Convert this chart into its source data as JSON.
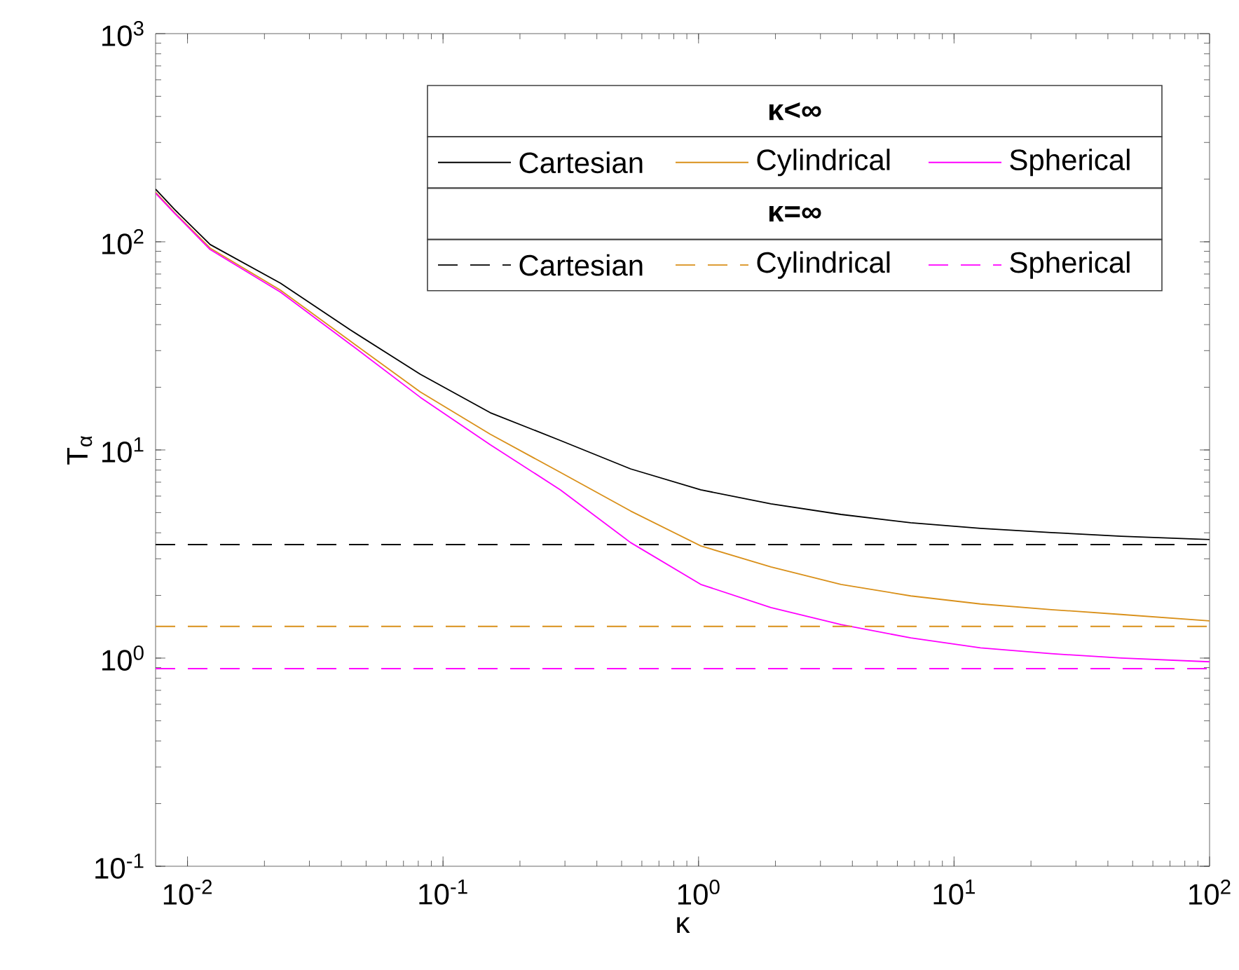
{
  "chart_data": {
    "type": "line",
    "xlabel": "κ",
    "ylabel": "T$_{α}$",
    "log": "xy",
    "xlim": [
      0.0075,
      100
    ],
    "ylim": [
      0.1,
      1000
    ],
    "xticks": [
      {
        "value": 0.01,
        "label": "10$^{-2}$"
      },
      {
        "value": 0.1,
        "label": "10$^{-1}$"
      },
      {
        "value": 1,
        "label": "10$^{0}$"
      },
      {
        "value": 10,
        "label": "10$^{1}$"
      },
      {
        "value": 100,
        "label": "10$^{2}$"
      }
    ],
    "yticks": [
      {
        "value": 0.1,
        "label": "10$^{-1}$"
      },
      {
        "value": 1,
        "label": "10$^{0}$"
      },
      {
        "value": 10,
        "label": "10$^{1}$"
      },
      {
        "value": 100,
        "label": "10$^{2}$"
      },
      {
        "value": 1000,
        "label": "10$^{3}$"
      }
    ],
    "grid": false,
    "legend": "top right",
    "annotations": [
      "κ<∞",
      "κ=∞"
    ],
    "series": [
      {
        "name": "Cartesian",
        "color": "#000000",
        "line_style": "solid",
        "x": [
          0.0075,
          0.0089,
          0.01226,
          0.0231,
          0.0434,
          0.0815,
          0.153,
          0.288,
          0.542,
          1.02,
          1.92,
          3.61,
          6.77,
          12.7,
          24.0,
          45.1,
          100
        ],
        "values": [
          179,
          143,
          97,
          63.3,
          37.7,
          23.1,
          15.1,
          11.1,
          8.11,
          6.43,
          5.51,
          4.9,
          4.47,
          4.2,
          4.01,
          3.85,
          3.71
        ]
      },
      {
        "name": "Cylindrical",
        "color": "#d9901a",
        "line_style": "solid",
        "x": [
          0.0075,
          0.0089,
          0.01226,
          0.0231,
          0.0434,
          0.0815,
          0.153,
          0.288,
          0.542,
          1.02,
          1.92,
          3.61,
          6.77,
          12.7,
          24.0,
          45.1,
          100
        ],
        "values": [
          173,
          138,
          93.3,
          58.6,
          33.3,
          19.0,
          11.9,
          7.8,
          5.09,
          3.46,
          2.74,
          2.26,
          1.99,
          1.82,
          1.71,
          1.62,
          1.51
        ]
      },
      {
        "name": "Spherical",
        "color": "#ff00ff",
        "line_style": "solid",
        "x": [
          0.0075,
          0.0089,
          0.01226,
          0.0231,
          0.0434,
          0.0815,
          0.153,
          0.288,
          0.542,
          1.02,
          1.92,
          3.61,
          6.77,
          12.7,
          24.0,
          45.1,
          100
        ],
        "values": [
          171,
          137,
          91.8,
          57.3,
          32.2,
          17.9,
          10.6,
          6.43,
          3.59,
          2.26,
          1.75,
          1.45,
          1.25,
          1.12,
          1.05,
          1.0,
          0.96
        ]
      },
      {
        "name": "Cartesian",
        "color": "#000000",
        "line_style": "dashed",
        "x": [
          0.0075,
          100
        ],
        "values": [
          3.51,
          3.51
        ]
      },
      {
        "name": "Cylindrical",
        "color": "#d9901a",
        "line_style": "dashed",
        "x": [
          0.0075,
          100
        ],
        "values": [
          1.42,
          1.42
        ]
      },
      {
        "name": "Spherical",
        "color": "#ff00ff",
        "line_style": "dashed",
        "x": [
          0.0075,
          100
        ],
        "values": [
          0.89,
          0.89
        ]
      }
    ]
  }
}
